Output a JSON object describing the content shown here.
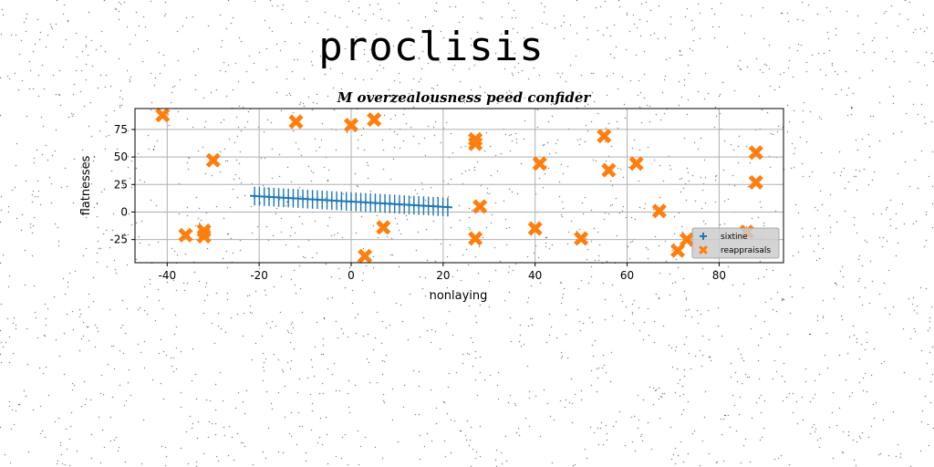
{
  "header": {
    "title": "proclisis"
  },
  "chart_data": {
    "type": "scatter",
    "title": "M overzealousness peed confider",
    "xlabel": "nonlaying",
    "ylabel": "flatnesses",
    "xlim": [
      -47,
      94
    ],
    "ylim": [
      -46,
      94
    ],
    "xticks": [
      -40,
      -20,
      0,
      20,
      40,
      60,
      80
    ],
    "yticks": [
      -25,
      0,
      25,
      50,
      75
    ],
    "grid": true,
    "legend_position": "lower-right",
    "series": [
      {
        "name": "sixtine",
        "marker": "plus",
        "color": "#1f77b4",
        "x_start": -21,
        "x_end": 21,
        "points": 41,
        "y_start": 14.5,
        "y_end": 4.5,
        "errorbar": 8.5,
        "x_range": [
          -22,
          22
        ]
      },
      {
        "name": "reappraisals",
        "marker": "x",
        "color": "#ff7f0e",
        "points": [
          [
            -41,
            88
          ],
          [
            -12,
            82
          ],
          [
            0,
            79
          ],
          [
            5,
            84
          ],
          [
            -30,
            47
          ],
          [
            -36,
            -21
          ],
          [
            -32,
            -17
          ],
          [
            -32,
            -22
          ],
          [
            3,
            -40
          ],
          [
            7,
            -14
          ],
          [
            27,
            66
          ],
          [
            27,
            62
          ],
          [
            28,
            5
          ],
          [
            27,
            -24
          ],
          [
            41,
            44
          ],
          [
            40,
            -15
          ],
          [
            50,
            -24
          ],
          [
            55,
            69
          ],
          [
            56,
            38
          ],
          [
            62,
            44
          ],
          [
            67,
            1
          ],
          [
            71,
            -35
          ],
          [
            73,
            -25
          ],
          [
            86,
            -18
          ],
          [
            88,
            54
          ],
          [
            88,
            27
          ]
        ]
      }
    ]
  }
}
